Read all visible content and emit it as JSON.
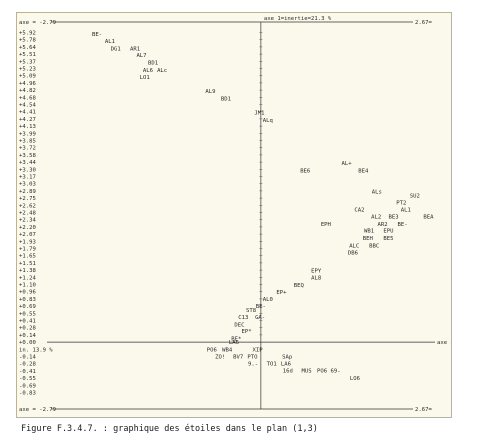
{
  "chart_data": {
    "type": "scatter",
    "title": "axe 1=inertie=21.3 %",
    "top_axis_left": "axe = -2.79",
    "top_axis_right": "2.67=",
    "bottom_axis_left": "axe = -2.79",
    "bottom_axis_right": "2.67=",
    "zero_left": "+0.00",
    "zero_mid": "LA6",
    "zero_right": "axe 3",
    "axis3_inertia": "in. 13.9 %",
    "x_range": [
      -2.79,
      2.67
    ],
    "y_ticks": [
      "+5.92",
      "+5.78",
      "+5.64",
      "+5.51",
      "+5.37",
      "+5.23",
      "+5.09",
      "+4.96",
      "+4.82",
      "+4.68",
      "+4.54",
      "+4.41",
      "+4.27",
      "+4.13",
      "+3.99",
      "+3.85",
      "+3.72",
      "+3.58",
      "+3.44",
      "+3.30",
      "+3.17",
      "+3.03",
      "+2.89",
      "+2.75",
      "+2.62",
      "+2.48",
      "+2.34",
      "+2.20",
      "+2.07",
      "+1.93",
      "+1.79",
      "+1.65",
      "+1.51",
      "+1.38",
      "+1.24",
      "+1.10",
      "+0.96",
      "+0.83",
      "+0.69",
      "+0.55",
      "+0.41",
      "+0.28",
      "+0.14"
    ],
    "y_ticks_negative": [
      "-0.14",
      "-0.28",
      "-0.41",
      "-0.55",
      "-0.69",
      "-0.83"
    ],
    "points": [
      {
        "label": "BE-",
        "x": -2.62,
        "y": 5.92
      },
      {
        "label": "AL1",
        "x": -2.42,
        "y": 5.78
      },
      {
        "label": "DG1",
        "x": -2.33,
        "y": 5.64
      },
      {
        "label": "AR1",
        "x": -2.03,
        "y": 5.64
      },
      {
        "label": "AL7",
        "x": -1.93,
        "y": 5.51
      },
      {
        "label": "BD1",
        "x": -1.75,
        "y": 5.37
      },
      {
        "label": "AL6",
        "x": -1.83,
        "y": 5.23
      },
      {
        "label": "ALc",
        "x": -1.61,
        "y": 5.23
      },
      {
        "label": "LO1",
        "x": -1.88,
        "y": 5.09
      },
      {
        "label": "AL9",
        "x": -0.86,
        "y": 4.82
      },
      {
        "label": "BD1",
        "x": -0.62,
        "y": 4.68
      },
      {
        "label": "JM1",
        "x": -0.1,
        "y": 4.41
      },
      {
        "label": "ALq",
        "x": 0.03,
        "y": 4.27
      },
      {
        "label": "AL+",
        "x": 1.25,
        "y": 3.44
      },
      {
        "label": "BE6",
        "x": 0.61,
        "y": 3.3
      },
      {
        "label": "BE4",
        "x": 1.51,
        "y": 3.3
      },
      {
        "label": "ALs",
        "x": 1.72,
        "y": 2.89
      },
      {
        "label": "SU2",
        "x": 2.31,
        "y": 2.82
      },
      {
        "label": "PT2",
        "x": 2.1,
        "y": 2.68
      },
      {
        "label": "CA2",
        "x": 1.45,
        "y": 2.55
      },
      {
        "label": "AL1",
        "x": 2.17,
        "y": 2.55
      },
      {
        "label": "AL2",
        "x": 1.71,
        "y": 2.41
      },
      {
        "label": "BE3",
        "x": 1.98,
        "y": 2.41
      },
      {
        "label": "BEA",
        "x": 2.52,
        "y": 2.41
      },
      {
        "label": "EPH",
        "x": 0.93,
        "y": 2.27
      },
      {
        "label": "AR2",
        "x": 1.81,
        "y": 2.27
      },
      {
        "label": "BE-",
        "x": 2.12,
        "y": 2.27
      },
      {
        "label": "WB1",
        "x": 1.6,
        "y": 2.14
      },
      {
        "label": "EPU",
        "x": 1.9,
        "y": 2.14
      },
      {
        "label": "BEH",
        "x": 1.58,
        "y": 2.0
      },
      {
        "label": "BE5",
        "x": 1.9,
        "y": 2.0
      },
      {
        "label": "ALC",
        "x": 1.37,
        "y": 1.86
      },
      {
        "label": "BBC",
        "x": 1.68,
        "y": 1.86
      },
      {
        "label": "DB6",
        "x": 1.35,
        "y": 1.72
      },
      {
        "label": "EPY",
        "x": 0.78,
        "y": 1.38
      },
      {
        "label": "AL8",
        "x": 0.78,
        "y": 1.24
      },
      {
        "label": "BEQ",
        "x": 0.51,
        "y": 1.1
      },
      {
        "label": "EP+",
        "x": 0.24,
        "y": 0.96
      },
      {
        "label": "AL0",
        "x": 0.03,
        "y": 0.83
      },
      {
        "label": "BE-",
        "x": -0.08,
        "y": 0.69
      },
      {
        "label": "ST8",
        "x": -0.23,
        "y": 0.62
      },
      {
        "label": "C13",
        "x": -0.35,
        "y": 0.48
      },
      {
        "label": "GA-",
        "x": -0.09,
        "y": 0.48
      },
      {
        "label": "DEC",
        "x": -0.41,
        "y": 0.34
      },
      {
        "label": "EP*",
        "x": -0.3,
        "y": 0.21
      },
      {
        "label": "BE*",
        "x": -0.46,
        "y": 0.07
      },
      {
        "label": "PO6",
        "x": -0.84,
        "y": -0.14
      },
      {
        "label": "WB4",
        "x": -0.6,
        "y": -0.14
      },
      {
        "label": "XIP",
        "x": -0.13,
        "y": -0.14
      },
      {
        "label": "ZO!",
        "x": -0.71,
        "y": -0.28
      },
      {
        "label": "BV7",
        "x": -0.43,
        "y": -0.28
      },
      {
        "label": "PTO",
        "x": -0.21,
        "y": -0.28
      },
      {
        "label": "SAp",
        "x": 0.33,
        "y": -0.28
      },
      {
        "label": "9.-",
        "x": -0.2,
        "y": -0.41
      },
      {
        "label": "TO1",
        "x": 0.09,
        "y": -0.41
      },
      {
        "label": "LA6",
        "x": 0.31,
        "y": -0.41
      },
      {
        "label": "16d",
        "x": 0.34,
        "y": -0.55
      },
      {
        "label": "MUS",
        "x": 0.63,
        "y": -0.55
      },
      {
        "label": "PO6",
        "x": 0.87,
        "y": -0.55
      },
      {
        "label": "69-",
        "x": 1.08,
        "y": -0.55
      },
      {
        "label": "LO6",
        "x": 1.38,
        "y": -0.69
      }
    ]
  },
  "caption": "Figure F.3.4.7. : graphique des étoiles dans le plan (1,3)"
}
